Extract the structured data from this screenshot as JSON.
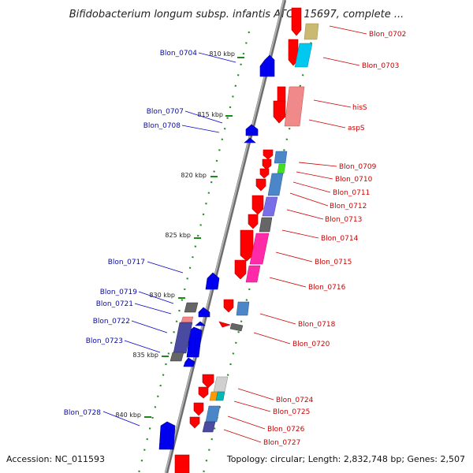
{
  "title": "Bifidobacterium longum subsp. infantis ATCC 15697, complete ...",
  "footer": {
    "accession": "Accession: NC_011593",
    "summary": "Topology: circular; Length: 2,832,748 bp; Genes: 2,507"
  },
  "ticks": [
    "810 kbp",
    "815 kbp",
    "820 kbp",
    "825 kbp",
    "830 kbp",
    "835 kbp",
    "840 kbp"
  ],
  "left_labels": [
    "Blon_0704",
    "Blon_0707",
    "Blon_0708",
    "Blon_0717",
    "Blon_0719",
    "Blon_0721",
    "Blon_0722",
    "Blon_0723",
    "Blon_0728"
  ],
  "right_labels": [
    "Blon_0702",
    "Blon_0703",
    "hisS",
    "aspS",
    "Blon_0709",
    "Blon_0710",
    "Blon_0711",
    "Blon_0712",
    "Blon_0713",
    "Blon_0714",
    "Blon_0715",
    "Blon_0716",
    "Blon_0718",
    "Blon_0720",
    "Blon_0724",
    "Blon_0725",
    "Blon_0726",
    "Blon_0727"
  ],
  "colors": {
    "backbone": "#8a8a8a",
    "reverse_strand_gene": "#ff0000",
    "forward_strand_gene": "#0000ee",
    "left_label": "#0a0aa8",
    "right_label": "#cc0000",
    "gc_dots": "#2a8a2a"
  }
}
